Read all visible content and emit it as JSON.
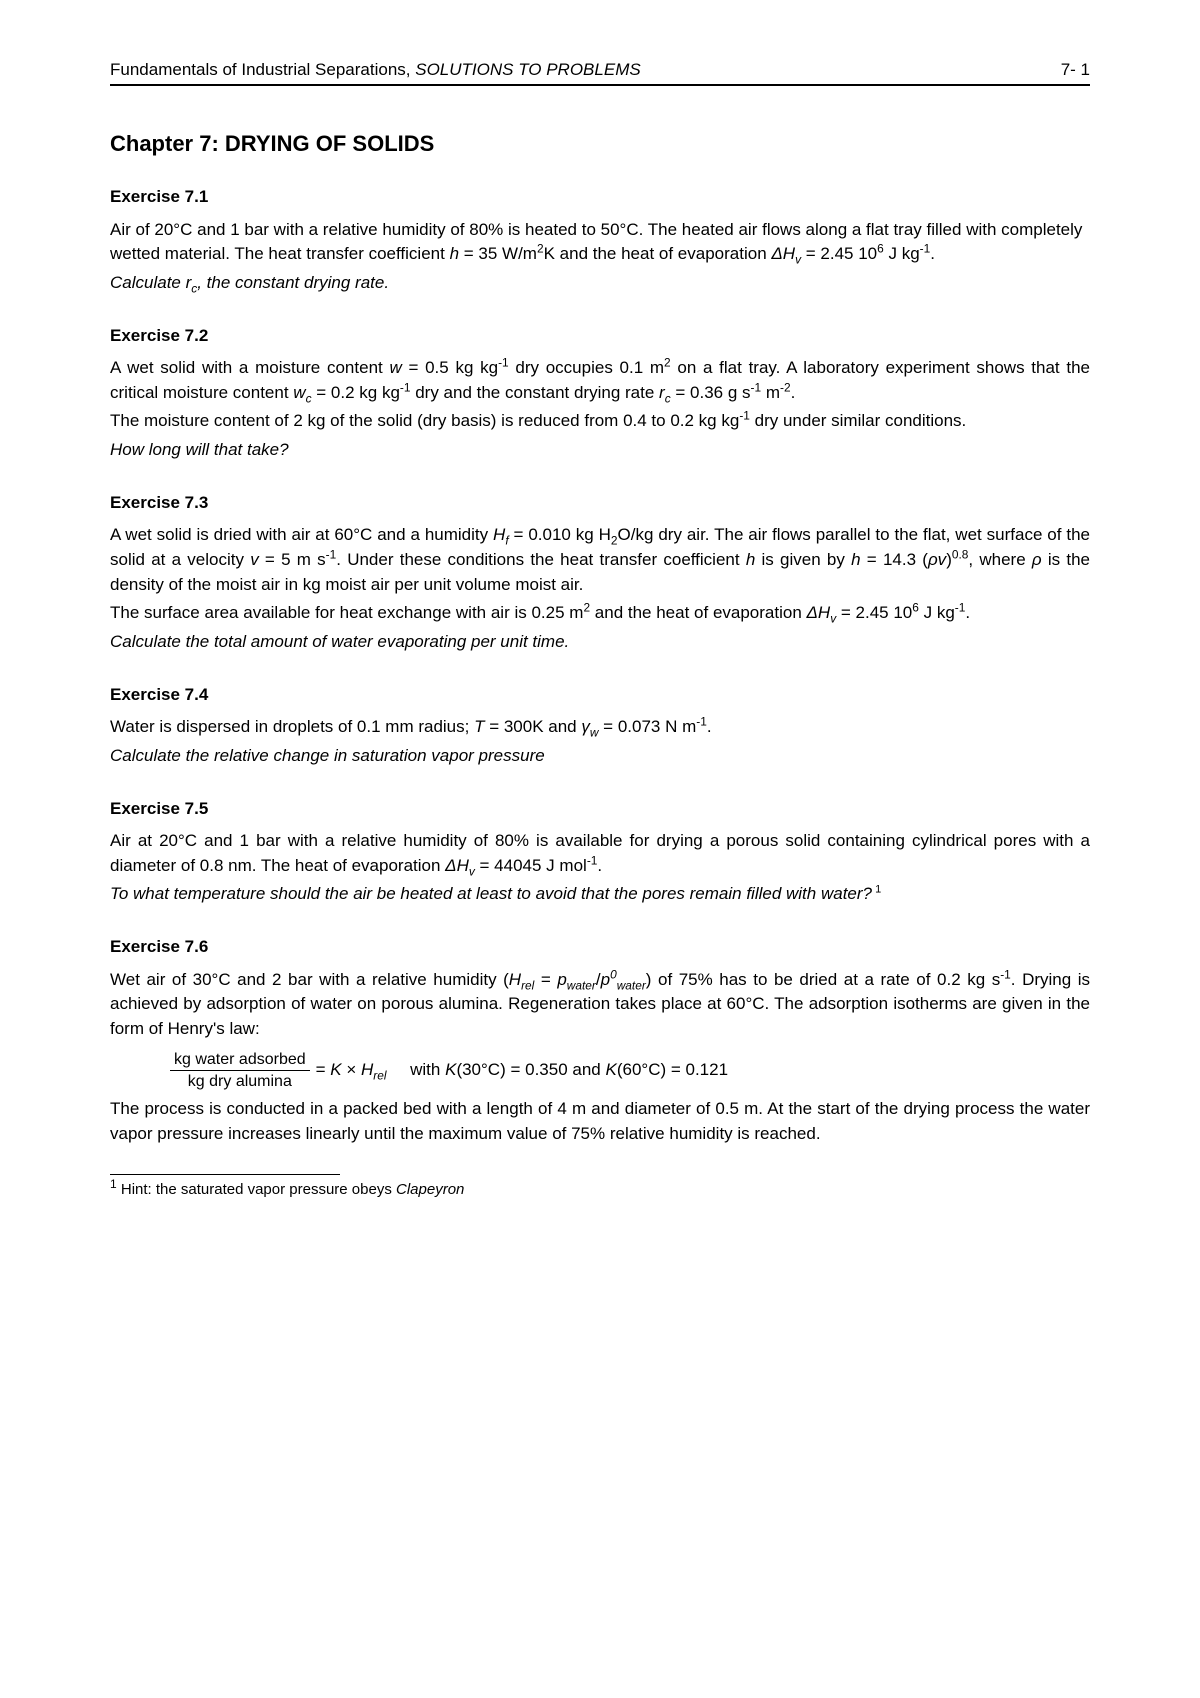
{
  "header": {
    "left_plain": "Fundamentals of Industrial Separations, ",
    "left_italic": "SOLUTIONS TO PROBLEMS",
    "right": "7- 1"
  },
  "chapter_title": "Chapter 7:   DRYING OF SOLIDS",
  "ex71": {
    "title": "Exercise 7.1",
    "question": "Calculate r<sub>c</sub>, the constant drying rate."
  },
  "ex72": {
    "title": "Exercise 7.2",
    "question": "How long will that take?"
  },
  "ex73": {
    "title": "Exercise 7.3",
    "question": "Calculate the total amount of water evaporating per unit time."
  },
  "ex74": {
    "title": "Exercise 7.4",
    "question": "Calculate the relative change in saturation vapor pressure"
  },
  "ex75": {
    "title": "Exercise 7.5"
  },
  "ex76": {
    "title": "Exercise 7.6",
    "frac_num": "kg water adsorbed",
    "frac_den": "kg dry alumina"
  },
  "footnote_marker": "1",
  "footnote_text": " Hint: the saturated vapor pressure obeys ",
  "footnote_italic": "Clapeyron"
}
